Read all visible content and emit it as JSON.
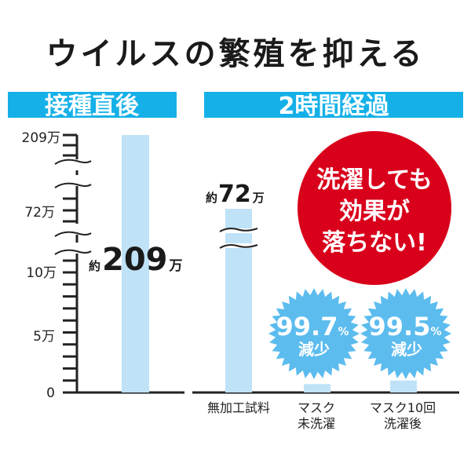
{
  "title": "ウイルスの繁殖を抑える",
  "colors": {
    "header": "#15b0e8",
    "bar": "#bfe2f7",
    "red": "#d9001b",
    "burst": "#5cbcee",
    "axis": "#222222"
  },
  "chart_data": [
    {
      "type": "bar",
      "title": "接種直後",
      "categories": [
        ""
      ],
      "values": [
        209
      ],
      "unit": "万",
      "yticks": [
        "209万",
        "72万",
        "10万",
        "5万",
        "0"
      ],
      "axis_break": true,
      "data_label": {
        "prefix": "約",
        "value": "209",
        "suffix": "万"
      }
    },
    {
      "type": "bar",
      "title": "2時間経過",
      "categories": [
        "無加工試料",
        "マスク|未洗濯",
        "マスク10回|洗濯後"
      ],
      "values": [
        72,
        0.7,
        1.0
      ],
      "unit": "万",
      "axis_break": true,
      "data_label": {
        "prefix": "約",
        "value": "72",
        "suffix": "万"
      },
      "badges": [
        {
          "value": "99.7",
          "unit": "%",
          "label": "減少"
        },
        {
          "value": "99.5",
          "unit": "%",
          "label": "減少"
        }
      ],
      "callout": [
        "洗濯しても",
        "効果が",
        "落ちない!"
      ]
    }
  ]
}
